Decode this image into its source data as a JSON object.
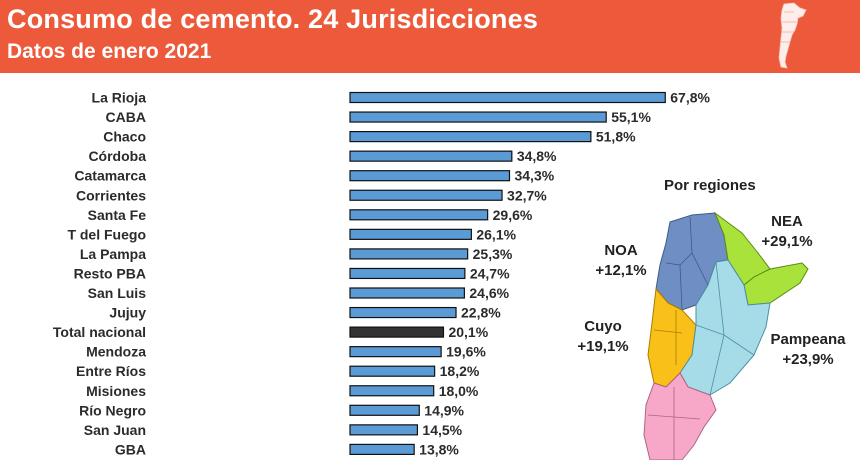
{
  "header": {
    "title": "Consumo de cemento. 24 Jurisdicciones",
    "subtitle": "Datos de enero 2021"
  },
  "colors": {
    "header_bg": "#ec5a3b",
    "bar": "#5b9bd5",
    "bar_highlight": "#333333",
    "noa": "#6f8fc4",
    "nea": "#a8e23a",
    "cuyo": "#f9c01a",
    "pampeana": "#a6dce8",
    "patagonia": "#f7a8c8"
  },
  "chart_data": {
    "type": "bar",
    "orientation": "horizontal",
    "categories": [
      "La Rioja",
      "CABA",
      "Chaco",
      "Córdoba",
      "Catamarca",
      "Corrientes",
      "Santa Fe",
      "T del Fuego",
      "La Pampa",
      "Resto PBA",
      "San Luis",
      "Jujuy",
      "Total nacional",
      "Mendoza",
      "Entre Ríos",
      "Misiones",
      "Río Negro",
      "San Juan",
      "GBA"
    ],
    "values": [
      67.8,
      55.1,
      51.8,
      34.8,
      34.3,
      32.7,
      29.6,
      26.1,
      25.3,
      24.7,
      24.6,
      22.8,
      20.1,
      19.6,
      18.2,
      18.0,
      14.9,
      14.5,
      13.8
    ],
    "value_labels": [
      "67,8%",
      "55,1%",
      "51,8%",
      "34,8%",
      "34,3%",
      "32,7%",
      "29,6%",
      "26,1%",
      "25,3%",
      "24,7%",
      "24,6%",
      "22,8%",
      "20,1%",
      "19,6%",
      "18,2%",
      "18,0%",
      "14,9%",
      "14,5%",
      "13,8%"
    ],
    "highlight": "Total nacional",
    "xlim": [
      0,
      70
    ],
    "grid": false,
    "legend": "none"
  },
  "regions": {
    "heading": "Por regiones",
    "items": [
      {
        "name": "NEA",
        "value": "+29,1%"
      },
      {
        "name": "NOA",
        "value": "+12,1%"
      },
      {
        "name": "Cuyo",
        "value": "+19,1%"
      },
      {
        "name": "Pampeana",
        "value": "+23,9%"
      }
    ]
  }
}
